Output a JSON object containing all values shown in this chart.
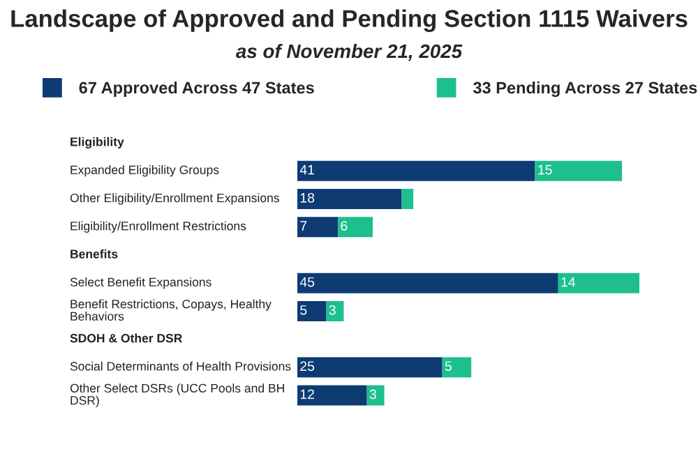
{
  "chart_data": {
    "type": "bar",
    "orientation": "horizontal",
    "stacked": true,
    "title": "Landscape of Approved and Pending Section 1115 Waivers",
    "subtitle": "as of November 21, 2025",
    "categories": [
      "Eligibility",
      "Expanded Eligibility Groups",
      "Other Eligibility/Enrollment Expansions",
      "Eligibility/Enrollment Restrictions",
      "Benefits",
      "Select Benefit Expansions",
      "Benefit Restrictions, Copays, Healthy\nBehaviors",
      "SDOH & Other DSR",
      "Social Determinants of Health Provisions",
      "Other Select DSRs (UCC Pools and BH\nDSR)"
    ],
    "series": [
      {
        "name": "67 Approved Across 47 States",
        "color": "#0d3b72",
        "values": [
          null,
          41,
          18,
          7,
          null,
          45,
          5,
          null,
          25,
          12
        ],
        "value_labels": [
          null,
          "41",
          "18",
          "7",
          null,
          "45",
          "5",
          null,
          "25",
          "12"
        ]
      },
      {
        "name": "33 Pending Across 27 States",
        "color": "#1dbf8e",
        "values": [
          null,
          15,
          2,
          6,
          null,
          14,
          3,
          null,
          5,
          3
        ],
        "value_labels": [
          null,
          "15",
          null,
          "6",
          null,
          "14",
          "3",
          null,
          "5",
          "3"
        ]
      }
    ],
    "legend": "top left"
  }
}
